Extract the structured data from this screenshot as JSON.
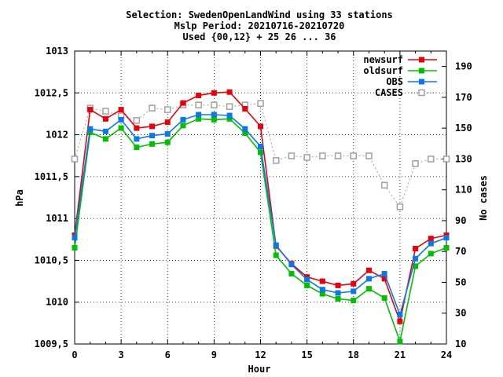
{
  "chart_data": {
    "type": "line",
    "title": [
      "Selection: SwedenOpenLandWind using    33 stations",
      "Mslp   Period: 20210716-20210720",
      "Used {00,12} + 25 26 ... 36"
    ],
    "xlabel": "Hour",
    "ylabel": "hPa",
    "y2label": "No cases",
    "xlim": [
      0,
      24
    ],
    "ylim": [
      1009.5,
      1013
    ],
    "y2lim": [
      10,
      200
    ],
    "x_ticks": [
      "0",
      "3",
      "6",
      "9",
      "12",
      "15",
      "18",
      "21",
      "24"
    ],
    "y_ticks": [
      "1009,5",
      "1010",
      "1010,5",
      "1011",
      "1011,5",
      "1012",
      "1012,5",
      "1013"
    ],
    "y2_ticks": [
      "10",
      "30",
      "50",
      "70",
      "90",
      "110",
      "130",
      "150",
      "170",
      "190"
    ],
    "grid": true,
    "legend_position": "top-right",
    "x": [
      0,
      1,
      2,
      3,
      4,
      5,
      6,
      7,
      8,
      9,
      10,
      11,
      12,
      13,
      14,
      15,
      16,
      17,
      18,
      19,
      20,
      21,
      22,
      23,
      24
    ],
    "series": [
      {
        "name": "newsurf",
        "axis": "left",
        "color": "#e8000b",
        "marker": "filled-square",
        "values": [
          1010.8,
          1012.3,
          1012.19,
          1012.3,
          1012.08,
          1012.1,
          1012.15,
          1012.38,
          1012.47,
          1012.5,
          1012.51,
          1012.31,
          1012.1,
          1010.67,
          1010.46,
          1010.3,
          1010.25,
          1010.2,
          1010.22,
          1010.38,
          1010.28,
          1009.77,
          1010.64,
          1010.76,
          1010.8
        ]
      },
      {
        "name": "oldsurf",
        "axis": "left",
        "color": "#00c000",
        "marker": "filled-square",
        "values": [
          1010.65,
          1012.03,
          1011.95,
          1012.08,
          1011.85,
          1011.89,
          1011.91,
          1012.11,
          1012.19,
          1012.18,
          1012.19,
          1012.02,
          1011.79,
          1010.56,
          1010.34,
          1010.2,
          1010.1,
          1010.04,
          1010.02,
          1010.16,
          1010.05,
          1009.53,
          1010.43,
          1010.58,
          1010.65
        ]
      },
      {
        "name": "OBS",
        "axis": "left",
        "color": "#0a78e6",
        "marker": "filled-square",
        "values": [
          1010.77,
          1012.07,
          1012.04,
          1012.18,
          1011.95,
          1011.99,
          1012.01,
          1012.18,
          1012.24,
          1012.24,
          1012.23,
          1012.07,
          1011.86,
          1010.68,
          1010.45,
          1010.27,
          1010.15,
          1010.11,
          1010.13,
          1010.28,
          1010.34,
          1009.85,
          1010.52,
          1010.7,
          1010.77
        ]
      },
      {
        "name": "CASES",
        "axis": "right",
        "color": "#a0a0a0",
        "marker": "open-square",
        "dashed": true,
        "values": [
          130,
          163,
          161,
          158,
          155,
          163,
          162,
          165,
          165,
          165,
          164,
          165,
          166,
          129,
          132,
          131,
          132,
          132,
          132,
          132,
          113,
          99,
          127,
          130,
          130
        ]
      }
    ]
  }
}
